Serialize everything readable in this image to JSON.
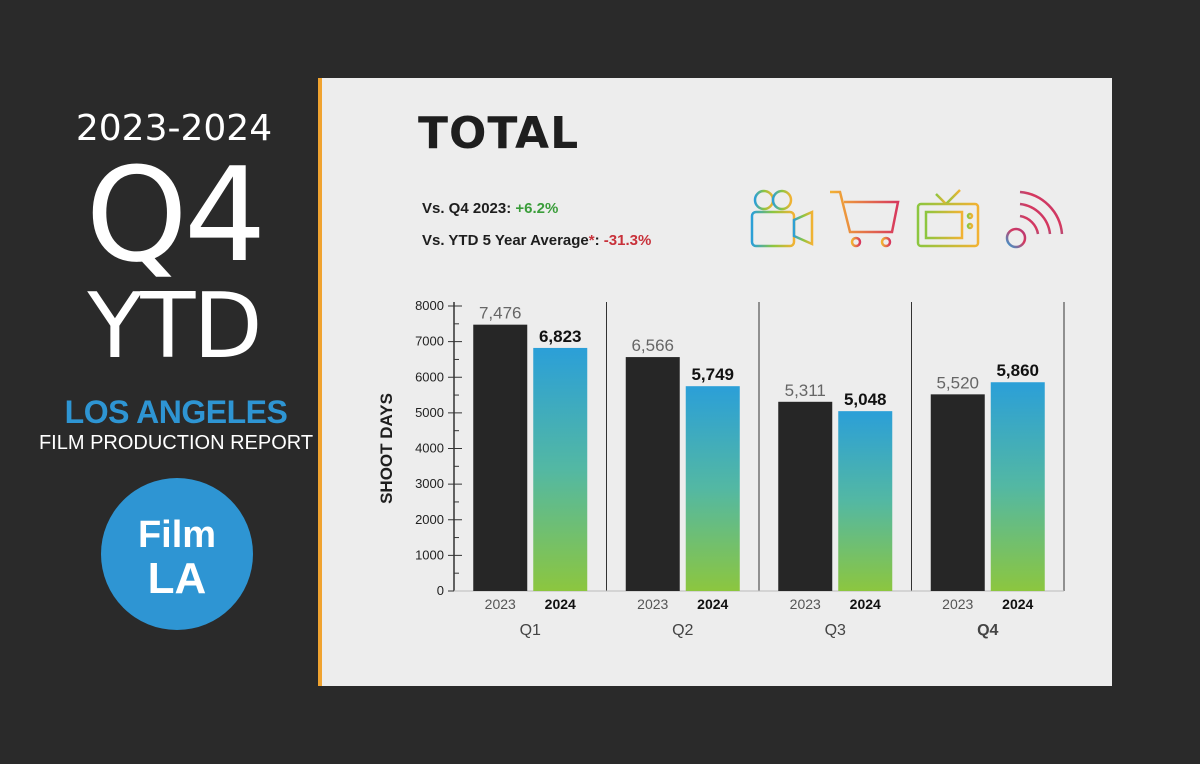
{
  "sidebar": {
    "years": "2023-2024",
    "period": "Q4",
    "ytd": "YTD",
    "city": "LOS ANGELES",
    "report": "FILM PRODUCTION REPORT",
    "logo_line1": "Film",
    "logo_line2": "LA"
  },
  "panel": {
    "title": "TOTAL",
    "stat1_label": "Vs. Q4 2023:",
    "stat1_value": "+6.2%",
    "stat2_label": "Vs. YTD 5 Year Average",
    "stat2_star": "*",
    "stat2_value": "-31.3%",
    "icons": [
      "film-camera-icon",
      "shopping-cart-icon",
      "tv-icon",
      "broadcast-icon"
    ]
  },
  "colors": {
    "accent_blue": "#2e95d3",
    "bar_2023": "#262626",
    "bar_2024_top": "#2b9fd8",
    "bar_2024_bottom": "#8cc63f",
    "positive": "#3a9d3a",
    "negative": "#c8313a"
  },
  "chart_data": {
    "type": "bar",
    "ylabel": "SHOOT DAYS",
    "ylim": [
      0,
      8000
    ],
    "yticks": [
      0,
      1000,
      2000,
      3000,
      4000,
      5000,
      6000,
      7000,
      8000
    ],
    "categories": [
      "Q1",
      "Q2",
      "Q3",
      "Q4"
    ],
    "highlight_category": "Q4",
    "series": [
      {
        "name": "2023",
        "values": [
          7476,
          6566,
          5311,
          5520
        ],
        "labels": [
          "7,476",
          "6,566",
          "5,311",
          "5,520"
        ]
      },
      {
        "name": "2024",
        "values": [
          6823,
          5749,
          5048,
          5860
        ],
        "labels": [
          "6,823",
          "5,749",
          "5,048",
          "5,860"
        ]
      }
    ]
  }
}
